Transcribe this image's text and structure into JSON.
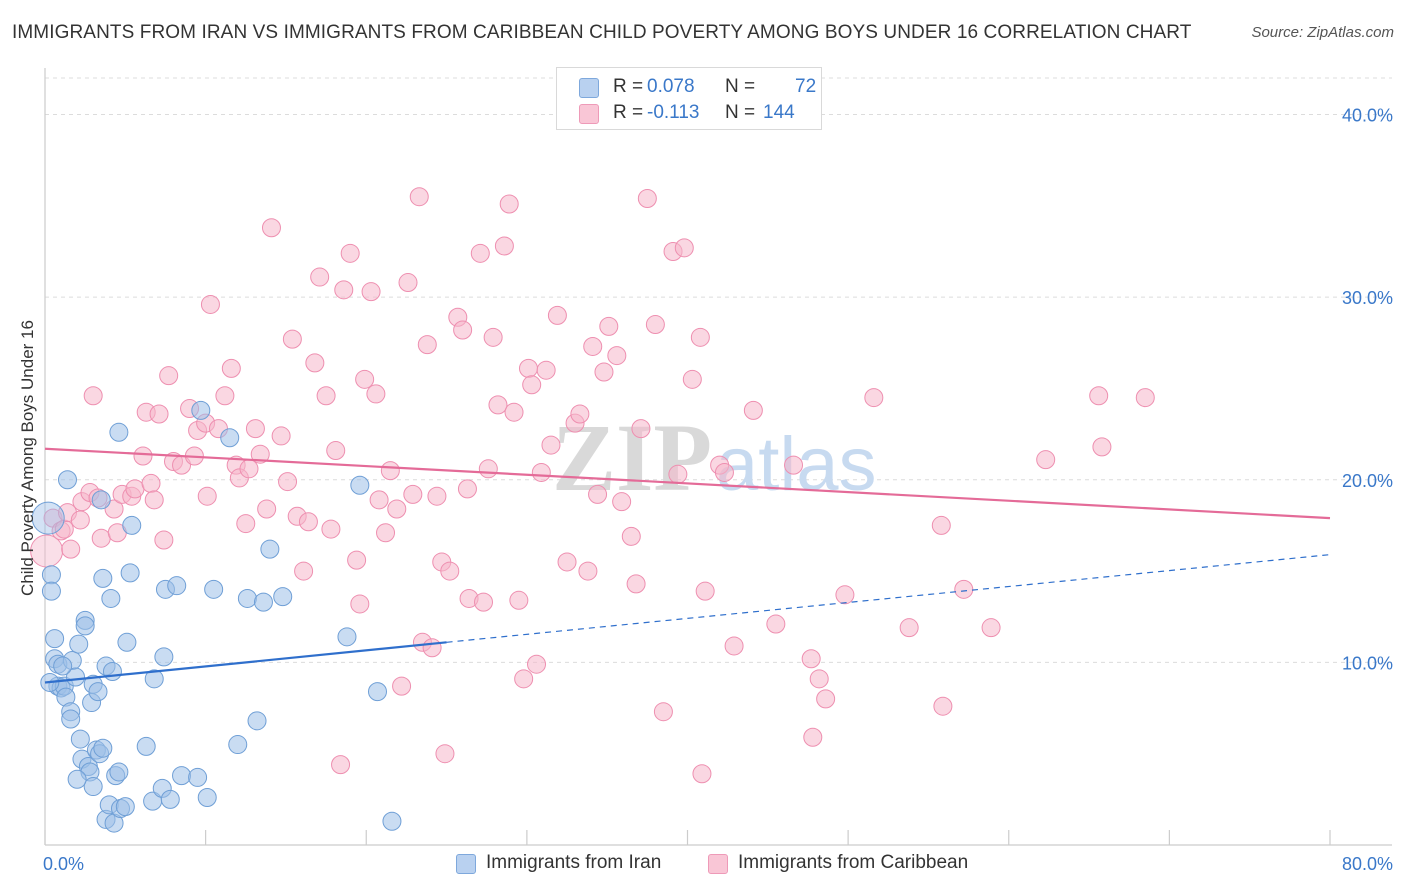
{
  "title": "IMMIGRANTS FROM IRAN VS IMMIGRANTS FROM CARIBBEAN CHILD POVERTY AMONG BOYS UNDER 16 CORRELATION CHART",
  "source": "Source: ZipAtlas.com",
  "watermark": {
    "zip": "ZIP",
    "atlas": "atlas"
  },
  "legend": {
    "rows": [
      {
        "r_label": "R =",
        "r_value": "0.078",
        "n_label": "N =",
        "n_value": "72"
      },
      {
        "r_label": "R =",
        "r_value": "-0.113",
        "n_label": "N =",
        "n_value": "144"
      }
    ]
  },
  "chart_data": {
    "type": "scatter",
    "title": "IMMIGRANTS FROM IRAN VS IMMIGRANTS FROM CARIBBEAN CHILD POVERTY AMONG BOYS UNDER 16 CORRELATION CHART",
    "xlabel": "",
    "ylabel": "Child Poverty Among Boys Under 16",
    "xlim": [
      0,
      80
    ],
    "ylim": [
      0,
      42
    ],
    "x_tick_labels": [
      {
        "value": 0,
        "label": "0.0%"
      },
      {
        "value": 80,
        "label": "80.0%"
      }
    ],
    "y_tick_labels": [
      {
        "value": 10,
        "label": "10.0%"
      },
      {
        "value": 20,
        "label": "20.0%"
      },
      {
        "value": 30,
        "label": "30.0%"
      },
      {
        "value": 40,
        "label": "40.0%"
      }
    ],
    "grid": true,
    "legend_position": "bottom",
    "series": [
      {
        "name": "Immigrants from Iran",
        "color": "#9dbfe8",
        "edge_color": "#6f9fd6",
        "line_color": "#2f6fcc",
        "trend": {
          "x0": 0,
          "y0": 8.9,
          "x_solid_end": 25,
          "y_solid_end": 11.1,
          "x1": 80,
          "y1": 15.9
        },
        "points": [
          [
            0.2,
            17.9
          ],
          [
            0.4,
            14.8
          ],
          [
            0.4,
            13.9
          ],
          [
            0.6,
            11.3
          ],
          [
            0.6,
            10.2
          ],
          [
            0.8,
            9.9
          ],
          [
            0.8,
            8.7
          ],
          [
            1.0,
            8.6
          ],
          [
            1.2,
            8.7
          ],
          [
            1.3,
            8.1
          ],
          [
            1.4,
            20.0
          ],
          [
            1.6,
            7.3
          ],
          [
            1.6,
            6.9
          ],
          [
            1.7,
            10.1
          ],
          [
            1.9,
            9.2
          ],
          [
            2.1,
            11.0
          ],
          [
            2.2,
            5.8
          ],
          [
            2.3,
            4.7
          ],
          [
            2.5,
            12.3
          ],
          [
            2.5,
            12.0
          ],
          [
            2.7,
            4.3
          ],
          [
            2.8,
            4.0
          ],
          [
            2.9,
            7.8
          ],
          [
            3.0,
            3.2
          ],
          [
            3.0,
            8.8
          ],
          [
            3.2,
            5.2
          ],
          [
            3.3,
            8.4
          ],
          [
            3.4,
            5.0
          ],
          [
            3.5,
            18.9
          ],
          [
            3.6,
            14.6
          ],
          [
            3.6,
            5.3
          ],
          [
            3.8,
            9.8
          ],
          [
            3.8,
            1.4
          ],
          [
            4.0,
            2.2
          ],
          [
            4.1,
            13.5
          ],
          [
            4.2,
            9.5
          ],
          [
            4.3,
            1.2
          ],
          [
            4.4,
            3.8
          ],
          [
            4.6,
            4.0
          ],
          [
            4.6,
            22.6
          ],
          [
            4.7,
            2.0
          ],
          [
            5.1,
            11.1
          ],
          [
            5.3,
            14.9
          ],
          [
            5.4,
            17.5
          ],
          [
            6.3,
            5.4
          ],
          [
            6.7,
            2.4
          ],
          [
            6.8,
            9.1
          ],
          [
            7.3,
            3.1
          ],
          [
            7.4,
            10.3
          ],
          [
            7.5,
            14.0
          ],
          [
            7.8,
            2.5
          ],
          [
            8.2,
            14.2
          ],
          [
            8.5,
            3.8
          ],
          [
            9.5,
            3.7
          ],
          [
            9.7,
            23.8
          ],
          [
            10.1,
            2.6
          ],
          [
            10.5,
            14.0
          ],
          [
            11.5,
            22.3
          ],
          [
            12.0,
            5.5
          ],
          [
            12.6,
            13.5
          ],
          [
            13.2,
            6.8
          ],
          [
            13.6,
            13.3
          ],
          [
            14.0,
            16.2
          ],
          [
            14.8,
            13.6
          ],
          [
            19.6,
            19.7
          ],
          [
            18.8,
            11.4
          ],
          [
            20.7,
            8.4
          ],
          [
            21.6,
            1.3
          ],
          [
            0.3,
            8.9
          ],
          [
            1.1,
            9.8
          ],
          [
            2.0,
            3.6
          ],
          [
            5.0,
            2.1
          ]
        ]
      },
      {
        "name": "Immigrants from Caribbean",
        "color": "#f5b7cb",
        "edge_color": "#ee8fb0",
        "line_color": "#e46b98",
        "trend": {
          "x0": 0,
          "y0": 21.7,
          "x1": 80,
          "y1": 17.9
        },
        "points": [
          [
            0.1,
            16.1
          ],
          [
            0.5,
            17.9
          ],
          [
            1.0,
            17.2
          ],
          [
            1.2,
            17.3
          ],
          [
            1.4,
            18.2
          ],
          [
            1.6,
            16.2
          ],
          [
            2.2,
            17.8
          ],
          [
            2.3,
            18.8
          ],
          [
            2.8,
            19.3
          ],
          [
            3.0,
            24.6
          ],
          [
            3.3,
            19.0
          ],
          [
            3.5,
            16.8
          ],
          [
            4.3,
            18.4
          ],
          [
            4.5,
            17.1
          ],
          [
            4.8,
            19.2
          ],
          [
            5.4,
            19.1
          ],
          [
            5.6,
            19.5
          ],
          [
            6.1,
            21.3
          ],
          [
            6.3,
            23.7
          ],
          [
            6.6,
            19.8
          ],
          [
            6.8,
            18.9
          ],
          [
            7.1,
            23.6
          ],
          [
            7.4,
            16.7
          ],
          [
            7.7,
            25.7
          ],
          [
            8.0,
            21.0
          ],
          [
            8.5,
            20.8
          ],
          [
            9.0,
            23.9
          ],
          [
            9.3,
            21.3
          ],
          [
            9.5,
            22.7
          ],
          [
            10.0,
            23.1
          ],
          [
            10.1,
            19.1
          ],
          [
            10.3,
            29.6
          ],
          [
            10.8,
            22.8
          ],
          [
            11.2,
            24.6
          ],
          [
            11.6,
            26.1
          ],
          [
            11.9,
            20.8
          ],
          [
            12.1,
            20.1
          ],
          [
            12.5,
            17.6
          ],
          [
            12.7,
            20.6
          ],
          [
            13.1,
            22.8
          ],
          [
            13.4,
            21.4
          ],
          [
            13.8,
            18.4
          ],
          [
            14.1,
            33.8
          ],
          [
            14.7,
            22.4
          ],
          [
            15.1,
            19.9
          ],
          [
            15.4,
            27.7
          ],
          [
            15.7,
            18.0
          ],
          [
            16.1,
            15.0
          ],
          [
            16.4,
            17.7
          ],
          [
            16.8,
            26.4
          ],
          [
            17.1,
            31.1
          ],
          [
            17.5,
            24.6
          ],
          [
            17.8,
            17.3
          ],
          [
            18.1,
            21.6
          ],
          [
            18.6,
            30.4
          ],
          [
            19.0,
            32.4
          ],
          [
            19.4,
            15.6
          ],
          [
            19.6,
            13.2
          ],
          [
            19.9,
            25.5
          ],
          [
            20.3,
            30.3
          ],
          [
            20.6,
            24.7
          ],
          [
            20.8,
            18.9
          ],
          [
            21.2,
            17.1
          ],
          [
            21.5,
            20.5
          ],
          [
            21.9,
            18.4
          ],
          [
            22.2,
            8.7
          ],
          [
            22.6,
            30.8
          ],
          [
            22.9,
            19.2
          ],
          [
            23.3,
            35.5
          ],
          [
            23.5,
            11.1
          ],
          [
            23.8,
            27.4
          ],
          [
            24.1,
            10.8
          ],
          [
            24.4,
            19.1
          ],
          [
            24.7,
            15.5
          ],
          [
            25.2,
            15.0
          ],
          [
            25.7,
            28.9
          ],
          [
            26.0,
            28.2
          ],
          [
            26.3,
            19.5
          ],
          [
            26.4,
            13.5
          ],
          [
            27.1,
            32.4
          ],
          [
            27.3,
            13.3
          ],
          [
            27.6,
            20.6
          ],
          [
            27.9,
            27.8
          ],
          [
            28.2,
            24.1
          ],
          [
            28.6,
            32.8
          ],
          [
            28.9,
            35.1
          ],
          [
            29.2,
            23.7
          ],
          [
            29.5,
            13.4
          ],
          [
            29.8,
            9.1
          ],
          [
            30.1,
            26.1
          ],
          [
            30.3,
            25.2
          ],
          [
            30.6,
            9.9
          ],
          [
            30.9,
            20.4
          ],
          [
            31.2,
            26.0
          ],
          [
            31.5,
            21.9
          ],
          [
            31.9,
            29.0
          ],
          [
            32.5,
            15.5
          ],
          [
            33.0,
            23.1
          ],
          [
            33.3,
            23.6
          ],
          [
            33.8,
            15.0
          ],
          [
            34.1,
            27.3
          ],
          [
            34.4,
            19.2
          ],
          [
            34.8,
            25.9
          ],
          [
            35.1,
            28.4
          ],
          [
            35.6,
            26.8
          ],
          [
            35.9,
            18.8
          ],
          [
            36.5,
            16.9
          ],
          [
            36.8,
            14.3
          ],
          [
            37.1,
            22.8
          ],
          [
            37.5,
            35.4
          ],
          [
            38.0,
            28.5
          ],
          [
            38.5,
            7.3
          ],
          [
            39.1,
            32.5
          ],
          [
            39.4,
            20.3
          ],
          [
            39.8,
            32.7
          ],
          [
            40.3,
            25.5
          ],
          [
            40.8,
            27.8
          ],
          [
            41.1,
            13.9
          ],
          [
            42.0,
            20.8
          ],
          [
            42.3,
            20.4
          ],
          [
            42.9,
            10.9
          ],
          [
            44.1,
            23.8
          ],
          [
            45.5,
            12.1
          ],
          [
            46.6,
            20.8
          ],
          [
            47.7,
            10.2
          ],
          [
            48.2,
            9.1
          ],
          [
            48.6,
            8.0
          ],
          [
            49.8,
            13.7
          ],
          [
            51.6,
            24.5
          ],
          [
            53.8,
            11.9
          ],
          [
            55.8,
            17.5
          ],
          [
            55.9,
            7.6
          ],
          [
            57.2,
            14.0
          ],
          [
            58.9,
            11.9
          ],
          [
            62.3,
            21.1
          ],
          [
            65.6,
            24.6
          ],
          [
            65.8,
            21.8
          ],
          [
            68.5,
            24.5
          ],
          [
            40.9,
            3.9
          ],
          [
            47.8,
            5.9
          ],
          [
            18.4,
            4.4
          ],
          [
            24.9,
            5.0
          ]
        ]
      }
    ]
  },
  "legend_bottom": {
    "items": [
      "Immigrants from Iran",
      "Immigrants from Caribbean"
    ]
  }
}
